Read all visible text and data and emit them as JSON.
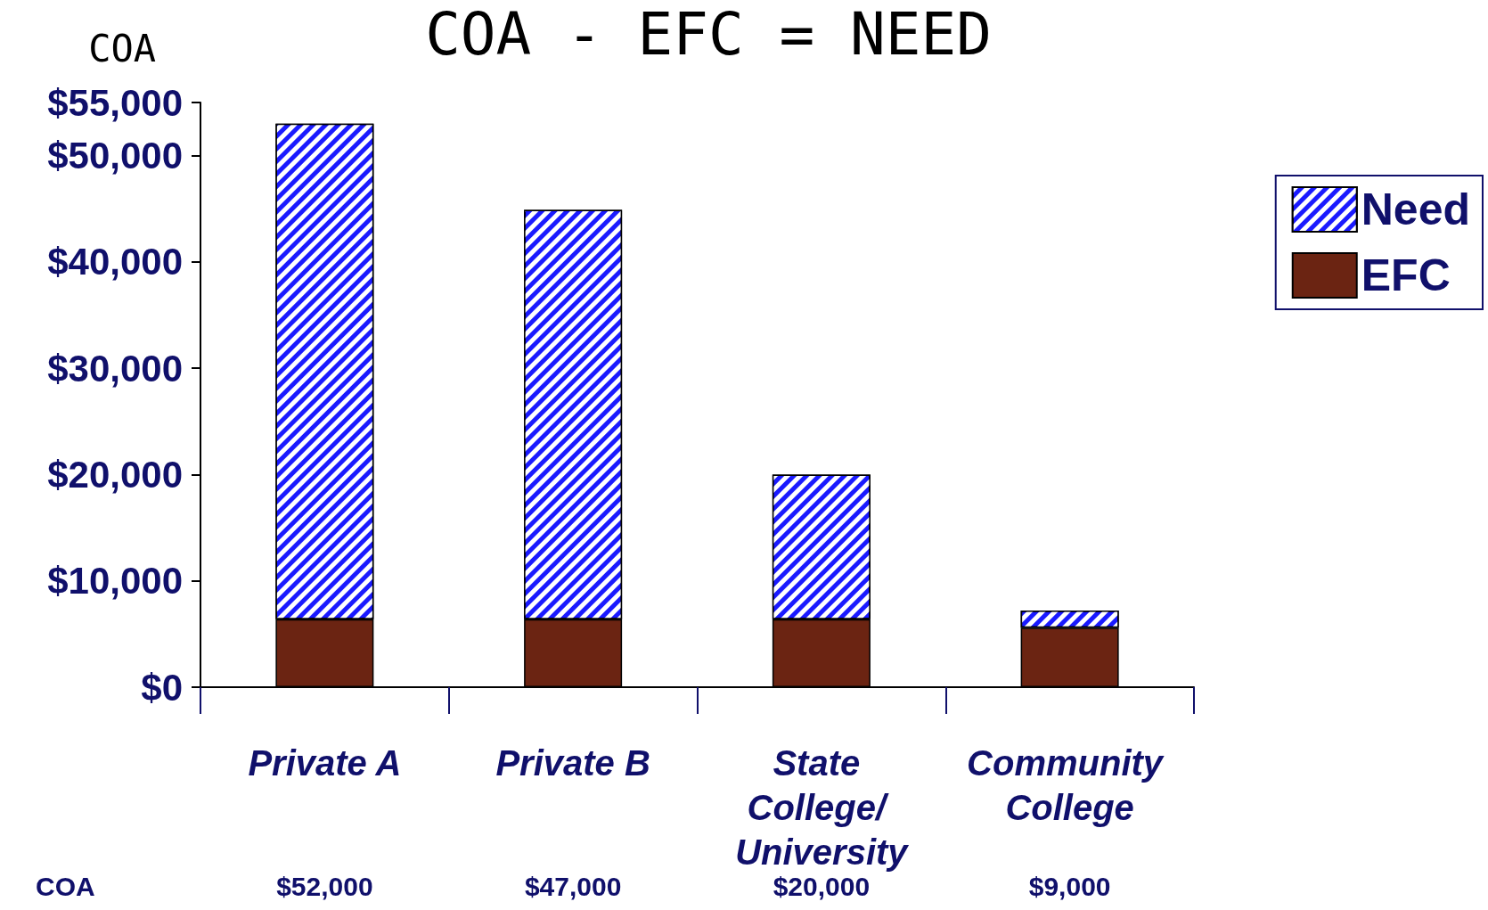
{
  "chart_data": {
    "type": "bar",
    "title": "COA - EFC = NEED",
    "ylabel": "COA",
    "stacked": true,
    "categories": [
      "Private A",
      "Private B",
      "State College/ University",
      "Community College"
    ],
    "series": [
      {
        "name": "EFC",
        "color": "#6b2412",
        "values": [
          6400,
          6400,
          6400,
          5600
        ]
      },
      {
        "name": "Need",
        "color": "#1a1aff",
        "values": [
          46600,
          38500,
          13600,
          1600
        ]
      }
    ],
    "ylim": [
      0,
      55000
    ],
    "yticks": [
      {
        "value": 0,
        "label": "$0"
      },
      {
        "value": 10000,
        "label": "$10,000"
      },
      {
        "value": 20000,
        "label": "$20,000"
      },
      {
        "value": 30000,
        "label": "$30,000"
      },
      {
        "value": 40000,
        "label": "$40,000"
      },
      {
        "value": 50000,
        "label": "$50,000"
      },
      {
        "value": 55000,
        "label": "$55,000"
      }
    ],
    "annotations": [
      "COA",
      "$52,000",
      "$47,000",
      "$20,000",
      "$9,000"
    ],
    "legend": "right",
    "grid": false
  }
}
